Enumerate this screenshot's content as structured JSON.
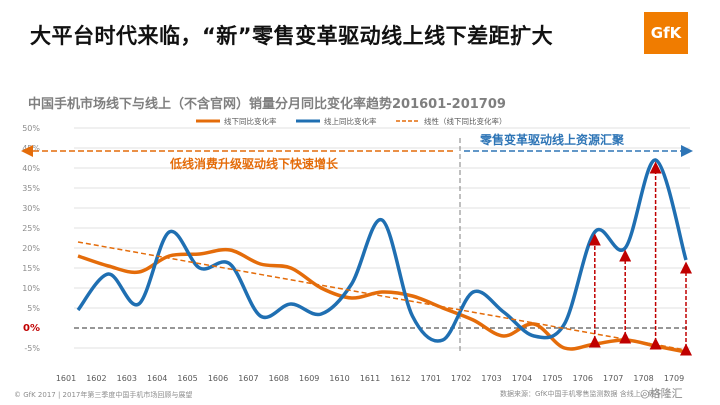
{
  "slide": {
    "title": "大平台时代来临，“新”零售变革驱动线上线下差距扩大",
    "logo_text": "GfK"
  },
  "chart_data": {
    "type": "line",
    "title": "中国手机市场线下与线上（不含官网）销量分月同比变化率趋势201601-201709",
    "categories": [
      "1601",
      "1602",
      "1603",
      "1604",
      "1605",
      "1606",
      "1607",
      "1608",
      "1609",
      "1610",
      "1611",
      "1612",
      "1701",
      "1702",
      "1703",
      "1704",
      "1705",
      "1706",
      "1707",
      "1708",
      "1709"
    ],
    "ylim": [
      -5,
      50
    ],
    "yticks": [
      -5,
      0,
      5,
      10,
      15,
      20,
      25,
      30,
      35,
      40,
      45,
      50
    ],
    "ytick_labels": [
      "-5%",
      "0%",
      "5%",
      "10%",
      "15%",
      "20%",
      "25%",
      "30%",
      "35%",
      "40%",
      "45%",
      "50%"
    ],
    "grid": true,
    "legend_position": "top",
    "series": [
      {
        "name": "线下同比变化率",
        "color": "#e46c0a",
        "values": [
          18,
          15.5,
          14,
          18,
          18.5,
          19.5,
          16,
          15,
          10,
          7.5,
          9,
          8,
          5,
          2,
          -2,
          1,
          -5,
          -4,
          -3,
          -4.5,
          -6
        ]
      },
      {
        "name": "线上同比变化率",
        "color": "#1f6fb2",
        "values": [
          4.5,
          13.5,
          6,
          24,
          15,
          16,
          3,
          6,
          3.5,
          11,
          27,
          3,
          -3,
          9,
          4,
          -2,
          1,
          24,
          20,
          42,
          17
        ]
      },
      {
        "name": "线性（线下同比变化率）",
        "color": "#e46c0a",
        "dash": true,
        "values": [
          21.5,
          20.1,
          18.8,
          17.4,
          16.1,
          14.7,
          13.4,
          12.0,
          10.7,
          9.3,
          8.0,
          6.6,
          5.3,
          3.9,
          2.6,
          1.2,
          -0.1,
          -1.5,
          -2.8,
          -4.2,
          -5.5
        ]
      }
    ],
    "annotations": {
      "left_arrow_label": "低线消费升级驱动线下快速增长",
      "right_arrow_label": "零售变革驱动线上资源汇聚"
    },
    "gap_arrow_categories": [
      "1706",
      "1707",
      "1708",
      "1709"
    ],
    "zero_label": "0%",
    "colors": {
      "offline": "#e46c0a",
      "online": "#1f6fb2",
      "gap_arrow": "#c00000",
      "left_arrow": "#e46c0a",
      "right_arrow": "#2e75b6"
    }
  },
  "footer": {
    "left": "© GfK 2017 | 2017年第三季度中国手机市场回顾与展望",
    "right": "数据来源：GfK中国手机零售监测数据 含线上、线下",
    "watermark": "◎格隆汇"
  }
}
